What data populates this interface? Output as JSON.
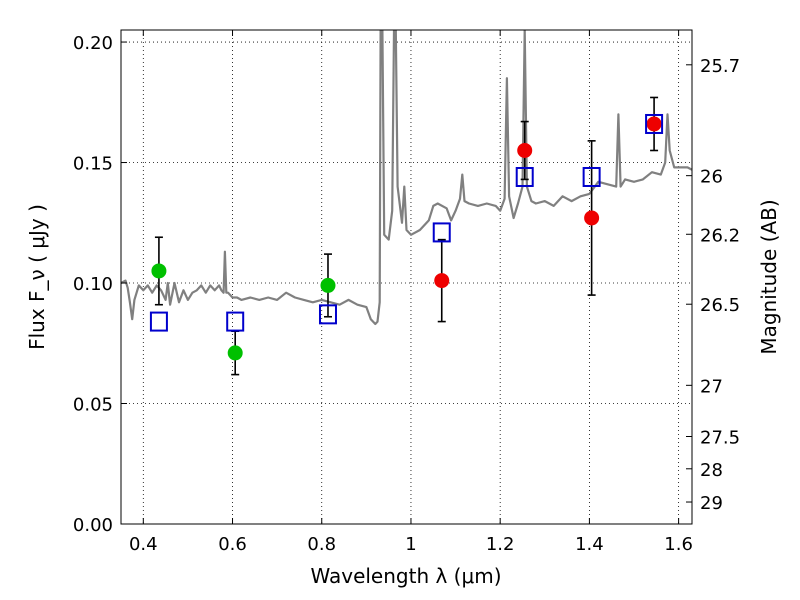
{
  "chart_data": {
    "type": "scatter",
    "xlabel": "Wavelength  λ (μm)",
    "ylabel": "Flux  F_ν  ( μJy )",
    "ylabel_right": "Magnitude (AB)",
    "xlim": [
      0.35,
      1.63
    ],
    "ylim": [
      0.0,
      0.205
    ],
    "grid": true,
    "x_ticks": [
      {
        "value": 0.4,
        "label": "0.4"
      },
      {
        "value": 0.6,
        "label": "0.6"
      },
      {
        "value": 0.8,
        "label": "0.8"
      },
      {
        "value": 1.0,
        "label": "1"
      },
      {
        "value": 1.2,
        "label": "1.2"
      },
      {
        "value": 1.4,
        "label": "1.4"
      },
      {
        "value": 1.6,
        "label": "1.6"
      }
    ],
    "y_ticks": [
      {
        "value": 0.0,
        "label": "0.00"
      },
      {
        "value": 0.05,
        "label": "0.05"
      },
      {
        "value": 0.1,
        "label": "0.10"
      },
      {
        "value": 0.15,
        "label": "0.15"
      },
      {
        "value": 0.2,
        "label": "0.20"
      }
    ],
    "mag_ticks": [
      {
        "mag": 25.7,
        "label": "25.7"
      },
      {
        "mag": 26,
        "label": "26"
      },
      {
        "mag": 26.2,
        "label": "26.2"
      },
      {
        "mag": 26.5,
        "label": "26.5"
      },
      {
        "mag": 27,
        "label": "27"
      },
      {
        "mag": 27.5,
        "label": "27.5"
      },
      {
        "mag": 28,
        "label": "28"
      },
      {
        "mag": 29,
        "label": "29"
      }
    ],
    "colors": {
      "model": "#808080",
      "green": "#00c000",
      "red": "#ee0000",
      "box": "#0000cc",
      "error": "#000000"
    },
    "model_spectrum": [
      [
        0.35,
        0.1
      ],
      [
        0.36,
        0.101
      ],
      [
        0.365,
        0.098
      ],
      [
        0.37,
        0.092
      ],
      [
        0.375,
        0.085
      ],
      [
        0.38,
        0.093
      ],
      [
        0.39,
        0.099
      ],
      [
        0.4,
        0.097
      ],
      [
        0.41,
        0.099
      ],
      [
        0.42,
        0.096
      ],
      [
        0.43,
        0.099
      ],
      [
        0.44,
        0.097
      ],
      [
        0.45,
        0.093
      ],
      [
        0.455,
        0.1
      ],
      [
        0.46,
        0.091
      ],
      [
        0.47,
        0.1
      ],
      [
        0.48,
        0.092
      ],
      [
        0.49,
        0.097
      ],
      [
        0.5,
        0.093
      ],
      [
        0.51,
        0.096
      ],
      [
        0.52,
        0.097
      ],
      [
        0.53,
        0.099
      ],
      [
        0.54,
        0.096
      ],
      [
        0.55,
        0.099
      ],
      [
        0.56,
        0.097
      ],
      [
        0.57,
        0.099
      ],
      [
        0.575,
        0.097
      ],
      [
        0.58,
        0.096
      ],
      [
        0.583,
        0.113
      ],
      [
        0.586,
        0.096
      ],
      [
        0.59,
        0.096
      ],
      [
        0.6,
        0.094
      ],
      [
        0.61,
        0.094
      ],
      [
        0.62,
        0.093
      ],
      [
        0.64,
        0.094
      ],
      [
        0.66,
        0.093
      ],
      [
        0.68,
        0.094
      ],
      [
        0.7,
        0.093
      ],
      [
        0.72,
        0.096
      ],
      [
        0.74,
        0.094
      ],
      [
        0.76,
        0.093
      ],
      [
        0.78,
        0.092
      ],
      [
        0.8,
        0.093
      ],
      [
        0.82,
        0.092
      ],
      [
        0.84,
        0.091
      ],
      [
        0.86,
        0.093
      ],
      [
        0.88,
        0.091
      ],
      [
        0.9,
        0.09
      ],
      [
        0.91,
        0.085
      ],
      [
        0.92,
        0.083
      ],
      [
        0.925,
        0.084
      ],
      [
        0.93,
        0.092
      ],
      [
        0.932,
        0.205
      ],
      [
        0.936,
        0.205
      ],
      [
        0.94,
        0.12
      ],
      [
        0.95,
        0.118
      ],
      [
        0.958,
        0.13
      ],
      [
        0.962,
        0.205
      ],
      [
        0.966,
        0.205
      ],
      [
        0.97,
        0.14
      ],
      [
        0.98,
        0.125
      ],
      [
        0.985,
        0.14
      ],
      [
        0.99,
        0.122
      ],
      [
        1.0,
        0.12
      ],
      [
        1.02,
        0.122
      ],
      [
        1.04,
        0.126
      ],
      [
        1.05,
        0.132
      ],
      [
        1.06,
        0.133
      ],
      [
        1.08,
        0.131
      ],
      [
        1.09,
        0.126
      ],
      [
        1.1,
        0.13
      ],
      [
        1.11,
        0.135
      ],
      [
        1.115,
        0.145
      ],
      [
        1.12,
        0.134
      ],
      [
        1.13,
        0.133
      ],
      [
        1.15,
        0.132
      ],
      [
        1.17,
        0.133
      ],
      [
        1.19,
        0.132
      ],
      [
        1.2,
        0.13
      ],
      [
        1.21,
        0.135
      ],
      [
        1.215,
        0.185
      ],
      [
        1.22,
        0.136
      ],
      [
        1.23,
        0.127
      ],
      [
        1.24,
        0.133
      ],
      [
        1.25,
        0.14
      ],
      [
        1.255,
        0.205
      ],
      [
        1.26,
        0.14
      ],
      [
        1.27,
        0.134
      ],
      [
        1.28,
        0.133
      ],
      [
        1.3,
        0.134
      ],
      [
        1.32,
        0.132
      ],
      [
        1.34,
        0.136
      ],
      [
        1.36,
        0.134
      ],
      [
        1.38,
        0.136
      ],
      [
        1.4,
        0.137
      ],
      [
        1.42,
        0.142
      ],
      [
        1.44,
        0.141
      ],
      [
        1.46,
        0.14
      ],
      [
        1.465,
        0.17
      ],
      [
        1.47,
        0.14
      ],
      [
        1.48,
        0.143
      ],
      [
        1.5,
        0.142
      ],
      [
        1.52,
        0.143
      ],
      [
        1.54,
        0.146
      ],
      [
        1.56,
        0.145
      ],
      [
        1.57,
        0.15
      ],
      [
        1.575,
        0.17
      ],
      [
        1.58,
        0.155
      ],
      [
        1.59,
        0.148
      ],
      [
        1.6,
        0.148
      ],
      [
        1.62,
        0.148
      ],
      [
        1.63,
        0.147
      ]
    ],
    "model_points": [
      {
        "x": 0.435,
        "y": 0.084
      },
      {
        "x": 0.606,
        "y": 0.084
      },
      {
        "x": 0.814,
        "y": 0.087
      },
      {
        "x": 1.069,
        "y": 0.121
      },
      {
        "x": 1.255,
        "y": 0.144
      },
      {
        "x": 1.405,
        "y": 0.144
      },
      {
        "x": 1.545,
        "y": 0.166
      }
    ],
    "observed_points": [
      {
        "x": 0.435,
        "y": 0.105,
        "err": 0.014,
        "color": "green"
      },
      {
        "x": 0.606,
        "y": 0.071,
        "err": 0.009,
        "color": "green"
      },
      {
        "x": 0.814,
        "y": 0.099,
        "err": 0.013,
        "color": "green"
      },
      {
        "x": 1.069,
        "y": 0.101,
        "err": 0.017,
        "color": "red"
      },
      {
        "x": 1.255,
        "y": 0.155,
        "err": 0.012,
        "color": "red"
      },
      {
        "x": 1.405,
        "y": 0.127,
        "err": 0.032,
        "color": "red"
      },
      {
        "x": 1.545,
        "y": 0.166,
        "err": 0.011,
        "color": "red"
      }
    ]
  }
}
